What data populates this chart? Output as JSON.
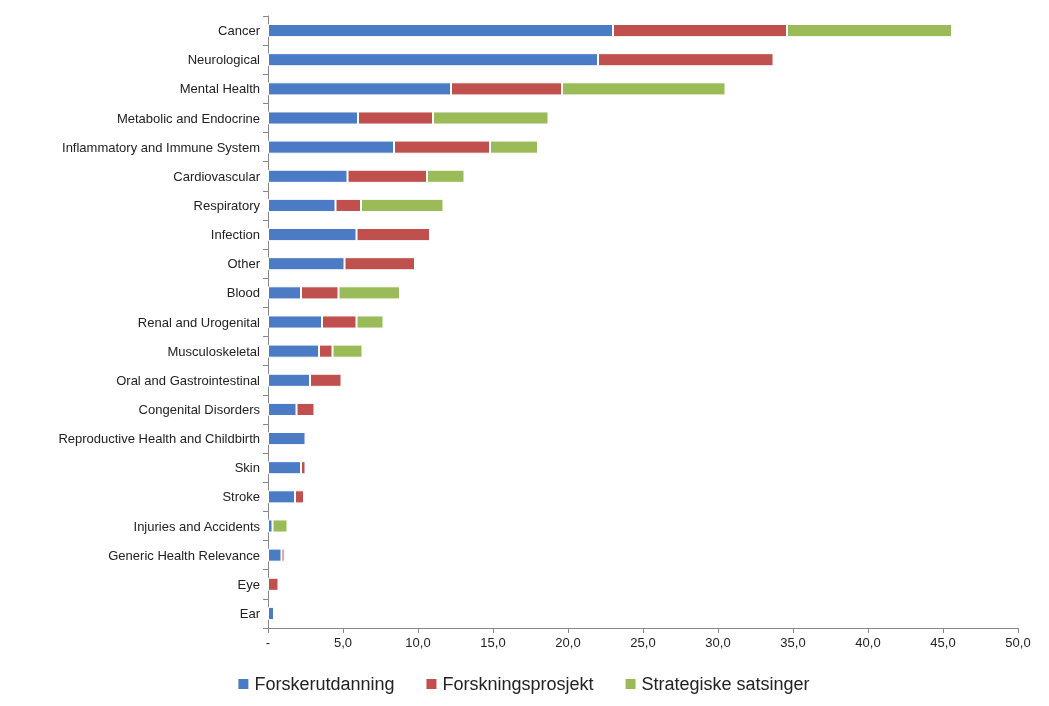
{
  "chart_data": {
    "type": "bar",
    "orientation": "horizontal",
    "stacked": true,
    "legend": "bottom",
    "grid": false,
    "categories": [
      "Cancer",
      "Neurological",
      "Mental Health",
      "Metabolic and Endocrine",
      "Inflammatory and Immune System",
      "Cardiovascular",
      "Respiratory",
      "Infection",
      "Other",
      "Blood",
      "Renal and Urogenital",
      "Musculoskeletal",
      "Oral and Gastrointestinal",
      "Congenital Disorders",
      "Reproductive Health and Childbirth",
      "Skin",
      "Stroke",
      "Injuries and Accidents",
      "Generic Health Relevance",
      "Eye",
      "Ear"
    ],
    "series": [
      {
        "name": "Forskerutdanning",
        "color": "#4a7bc4",
        "values": [
          23.0,
          22.0,
          12.2,
          6.0,
          8.4,
          5.3,
          4.5,
          5.9,
          5.1,
          2.2,
          3.6,
          3.4,
          2.8,
          1.9,
          2.5,
          2.2,
          1.8,
          0.3,
          0.9,
          null,
          0.4
        ]
      },
      {
        "name": "Forskningsprosjekt",
        "color": "#c0504d",
        "values": [
          11.6,
          11.7,
          7.4,
          5.0,
          6.4,
          5.3,
          1.7,
          4.9,
          4.7,
          2.5,
          2.3,
          0.9,
          2.1,
          1.2,
          null,
          0.3,
          0.6,
          null,
          0.2,
          0.7,
          null
        ]
      },
      {
        "name": "Strategiske satsinger",
        "color": "#9bbb59",
        "values": [
          11.0,
          null,
          10.9,
          7.7,
          3.2,
          2.5,
          5.5,
          null,
          null,
          4.1,
          1.8,
          2.0,
          null,
          null,
          null,
          null,
          null,
          1.0,
          null,
          null,
          null
        ]
      }
    ],
    "xlim": [
      0,
      50
    ],
    "xticks": [
      {
        "value": 0,
        "label": "-"
      },
      {
        "value": 5,
        "label": "5,0"
      },
      {
        "value": 10,
        "label": "10,0"
      },
      {
        "value": 15,
        "label": "15,0"
      },
      {
        "value": 20,
        "label": "20,0"
      },
      {
        "value": 25,
        "label": "25,0"
      },
      {
        "value": 30,
        "label": "30,0"
      },
      {
        "value": 35,
        "label": "35,0"
      },
      {
        "value": 40,
        "label": "40,0"
      },
      {
        "value": 45,
        "label": "45,0"
      },
      {
        "value": 50,
        "label": "50,0"
      }
    ]
  }
}
